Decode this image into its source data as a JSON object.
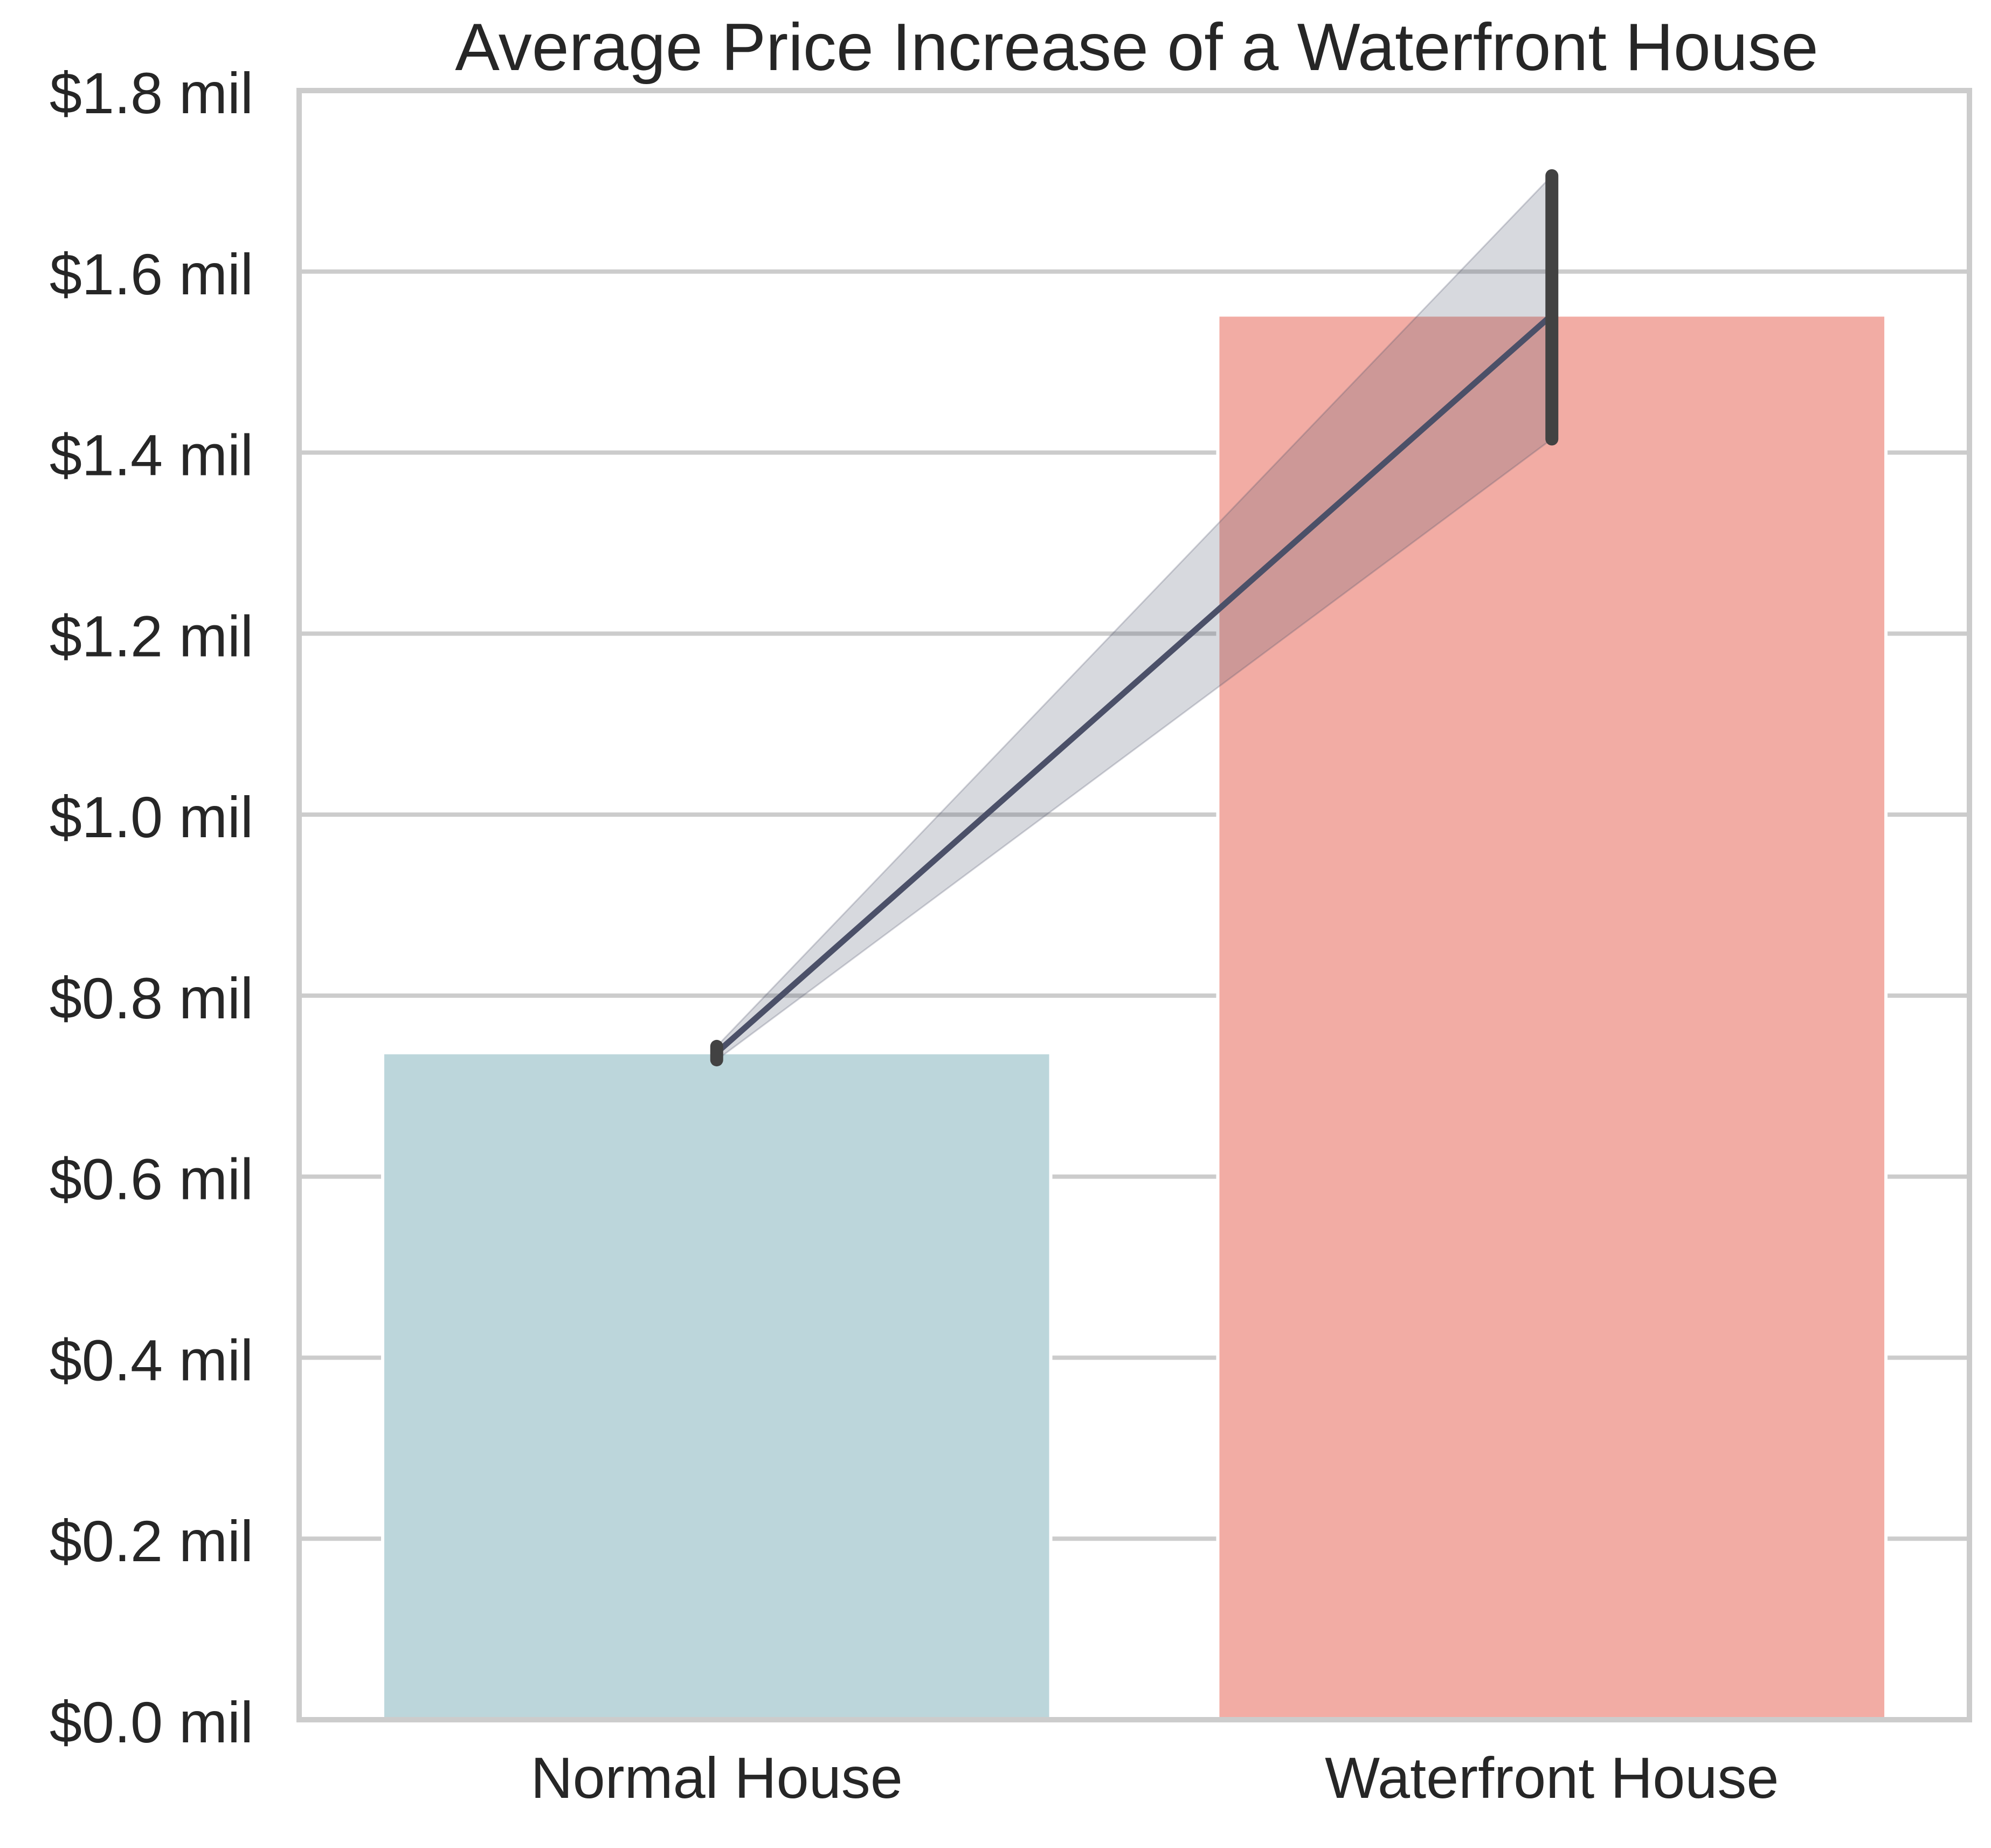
{
  "chart_data": {
    "type": "bar",
    "title": "Average Price Increase of a Waterfront House",
    "xlabel": "",
    "ylabel": "",
    "categories": [
      "Normal House",
      "Waterfront House"
    ],
    "values": [
      0.737,
      1.552
    ],
    "error_bars": [
      {
        "low": 0.729,
        "high": 0.744
      },
      {
        "low": 1.415,
        "high": 1.706
      }
    ],
    "bar_colors": [
      "#bcd6db",
      "#f2aca4"
    ],
    "line_overlay": {
      "values": [
        0.737,
        1.552
      ],
      "band_low": [
        0.729,
        1.415
      ],
      "band_high": [
        0.744,
        1.706
      ],
      "color": "#4b5068"
    },
    "y_ticks": [
      0.0,
      0.2,
      0.4,
      0.6,
      0.8,
      1.0,
      1.2,
      1.4,
      1.6,
      1.8
    ],
    "y_tick_labels": [
      "$0.0 mil",
      "$0.2 mil",
      "$0.4 mil",
      "$0.6 mil",
      "$0.8 mil",
      "$1.0 mil",
      "$1.2 mil",
      "$1.4 mil",
      "$1.6 mil",
      "$1.8 mil"
    ],
    "ylim": [
      0,
      1.8
    ],
    "grid": "horizontal",
    "legend": "none"
  }
}
